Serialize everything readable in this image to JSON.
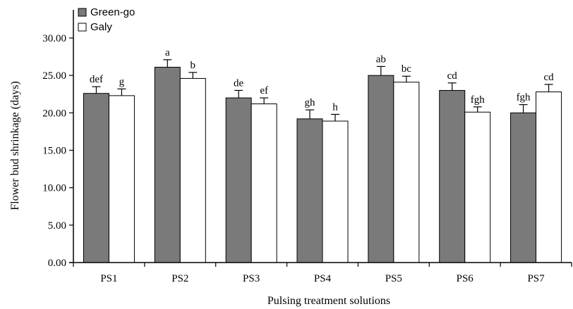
{
  "chart_data": {
    "type": "bar",
    "title": "",
    "xlabel": "Pulsing treatment solutions",
    "ylabel": "Flower bud shrinkage (days)",
    "ylim": [
      0,
      30
    ],
    "yticks": [
      "0.00",
      "5.00",
      "10.00",
      "15.00",
      "20.00",
      "25.00",
      "30.00"
    ],
    "grid": false,
    "legend_position": "top-left",
    "categories": [
      "PS1",
      "PS2",
      "PS3",
      "PS4",
      "PS5",
      "PS6",
      "PS7"
    ],
    "series": [
      {
        "name": "Green-go",
        "color": "#7a7a7a",
        "values": [
          22.6,
          26.1,
          22.0,
          19.2,
          25.0,
          23.0,
          20.0
        ],
        "errors": [
          0.9,
          1.0,
          1.0,
          1.2,
          1.2,
          1.0,
          1.1
        ],
        "labels": [
          "def",
          "a",
          "de",
          "gh",
          "ab",
          "cd",
          "fgh"
        ]
      },
      {
        "name": "Galy",
        "color": "#ffffff",
        "values": [
          22.3,
          24.6,
          21.2,
          18.9,
          24.1,
          20.1,
          22.8
        ],
        "errors": [
          0.9,
          0.8,
          0.8,
          0.9,
          0.8,
          0.7,
          1.0
        ],
        "labels": [
          "g",
          "b",
          "ef",
          "h",
          "bc",
          "fgh",
          "cd"
        ]
      }
    ]
  }
}
